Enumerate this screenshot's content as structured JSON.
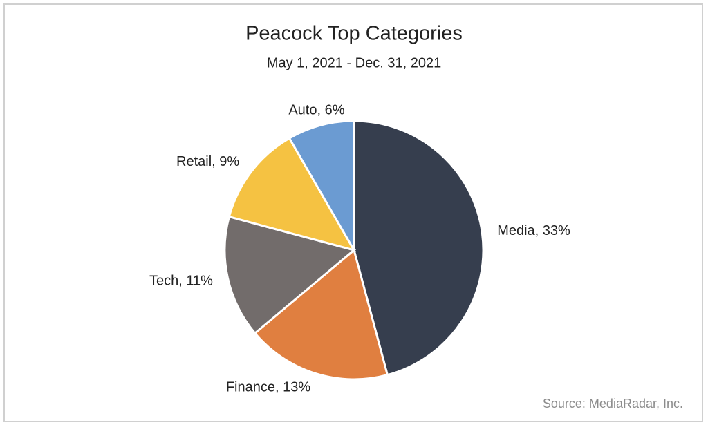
{
  "chart_data": {
    "type": "pie",
    "title": "Peacock Top Categories",
    "subtitle": "May 1, 2021 - Dec. 31, 2021",
    "categories": [
      "Media",
      "Finance",
      "Tech",
      "Retail",
      "Auto"
    ],
    "values": [
      33,
      13,
      11,
      9,
      6
    ],
    "value_labels": [
      "Media, 33%",
      "Finance, 13%",
      "Tech, 11%",
      "Retail, 9%",
      "Auto, 6%"
    ],
    "colors": [
      "#363e4e",
      "#e07f40",
      "#726c6b",
      "#f5c242",
      "#6b9bd2"
    ],
    "source": "Source: MediaRadar, Inc."
  }
}
